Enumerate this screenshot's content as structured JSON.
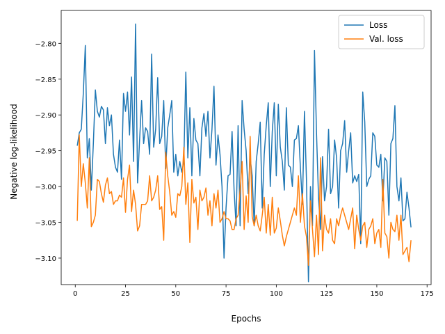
{
  "chart_data": {
    "type": "line",
    "xlabel": "Epochs",
    "ylabel": "Negative log-likelihood",
    "x": [
      1,
      2,
      3,
      4,
      5,
      6,
      7,
      8,
      9,
      10,
      11,
      12,
      13,
      14,
      15,
      16,
      17,
      18,
      19,
      20,
      21,
      22,
      23,
      24,
      25,
      26,
      27,
      28,
      29,
      30,
      31,
      32,
      33,
      34,
      35,
      36,
      37,
      38,
      39,
      40,
      41,
      42,
      43,
      44,
      45,
      46,
      47,
      48,
      49,
      50,
      51,
      52,
      53,
      54,
      55,
      56,
      57,
      58,
      59,
      60,
      61,
      62,
      63,
      64,
      65,
      66,
      67,
      68,
      69,
      70,
      71,
      72,
      73,
      74,
      75,
      76,
      77,
      78,
      79,
      80,
      81,
      82,
      83,
      84,
      85,
      86,
      87,
      88,
      89,
      90,
      91,
      92,
      93,
      94,
      95,
      96,
      97,
      98,
      99,
      100,
      101,
      102,
      103,
      104,
      105,
      106,
      107,
      108,
      109,
      110,
      111,
      112,
      113,
      114,
      115,
      116,
      117,
      118,
      119,
      120,
      121,
      122,
      123,
      124,
      125,
      126,
      127,
      128,
      129,
      130,
      131,
      132,
      133,
      134,
      135,
      136,
      137,
      138,
      139,
      140,
      141,
      142,
      143,
      144,
      145,
      146,
      147,
      148,
      149,
      150,
      151,
      152,
      153,
      154,
      155,
      156,
      157,
      158,
      159,
      160,
      161,
      162,
      163,
      164,
      165,
      166,
      167
    ],
    "series": [
      {
        "name": "Loss",
        "color": "#1f77b4",
        "values": [
          -2.943,
          -2.925,
          -2.92,
          -2.87,
          -2.803,
          -2.96,
          -2.933,
          -3.005,
          -2.94,
          -2.865,
          -2.895,
          -2.903,
          -2.888,
          -2.893,
          -2.94,
          -2.89,
          -2.915,
          -2.9,
          -2.955,
          -2.973,
          -2.98,
          -2.935,
          -2.99,
          -2.87,
          -2.895,
          -2.868,
          -2.928,
          -2.847,
          -2.965,
          -2.773,
          -2.995,
          -2.935,
          -2.88,
          -2.94,
          -2.918,
          -2.923,
          -2.955,
          -2.815,
          -2.945,
          -2.92,
          -2.848,
          -2.94,
          -2.93,
          -2.88,
          -2.975,
          -2.918,
          -2.9,
          -2.88,
          -2.98,
          -2.955,
          -2.985,
          -2.965,
          -2.98,
          -2.965,
          -2.84,
          -2.96,
          -2.89,
          -2.985,
          -2.905,
          -2.935,
          -2.94,
          -2.985,
          -2.918,
          -2.898,
          -2.93,
          -2.895,
          -2.96,
          -2.92,
          -2.86,
          -2.97,
          -2.928,
          -2.955,
          -3.0,
          -3.1,
          -3.03,
          -2.985,
          -2.983,
          -2.923,
          -3.005,
          -3.055,
          -2.915,
          -3.055,
          -2.88,
          -2.92,
          -2.95,
          -3.01,
          -2.96,
          -2.985,
          -3.055,
          -2.965,
          -2.94,
          -2.91,
          -3.03,
          -2.955,
          -2.915,
          -2.883,
          -3.0,
          -2.923,
          -2.883,
          -2.985,
          -2.885,
          -2.945,
          -2.965,
          -3.005,
          -2.89,
          -2.97,
          -2.973,
          -3.0,
          -2.935,
          -2.933,
          -2.915,
          -2.975,
          -3.025,
          -2.895,
          -2.99,
          -3.133,
          -3.0,
          -3.055,
          -2.81,
          -2.925,
          -3.015,
          -3.06,
          -2.958,
          -3.02,
          -3.0,
          -2.92,
          -3.01,
          -3.0,
          -2.935,
          -2.96,
          -3.03,
          -2.95,
          -2.94,
          -2.908,
          -2.98,
          -2.95,
          -2.925,
          -2.995,
          -2.985,
          -2.993,
          -2.983,
          -3.08,
          -2.868,
          -2.91,
          -3.0,
          -2.99,
          -2.985,
          -2.925,
          -2.93,
          -2.97,
          -2.973,
          -2.955,
          -3.02,
          -2.96,
          -2.965,
          -3.04,
          -2.94,
          -2.933,
          -2.887,
          -3.0,
          -3.02,
          -2.988,
          -3.048,
          -3.045,
          -3.008,
          -3.03,
          -3.057
        ]
      },
      {
        "name": "Val. loss",
        "color": "#ff7f0e",
        "values": [
          -3.048,
          -2.928,
          -3.0,
          -2.968,
          -2.995,
          -3.03,
          -2.96,
          -3.056,
          -3.05,
          -3.04,
          -2.99,
          -2.993,
          -3.01,
          -3.022,
          -2.998,
          -2.988,
          -3.01,
          -3.007,
          -3.025,
          -3.02,
          -3.02,
          -3.012,
          -3.015,
          -2.988,
          -3.036,
          -2.99,
          -2.97,
          -3.035,
          -3.005,
          -3.025,
          -3.062,
          -3.055,
          -3.025,
          -3.025,
          -3.025,
          -3.02,
          -2.985,
          -3.02,
          -3.015,
          -3.005,
          -2.985,
          -3.032,
          -3.028,
          -3.075,
          -2.952,
          -2.985,
          -3.008,
          -3.04,
          -3.035,
          -3.043,
          -3.01,
          -3.013,
          -3.0,
          -2.945,
          -3.025,
          -2.995,
          -3.078,
          -2.99,
          -3.023,
          -3.015,
          -3.06,
          -3.005,
          -3.02,
          -3.015,
          -3.002,
          -3.04,
          -3.02,
          -3.055,
          -3.01,
          -3.03,
          -3.005,
          -3.05,
          -3.045,
          -3.035,
          -3.045,
          -3.045,
          -3.048,
          -3.06,
          -3.06,
          -3.045,
          -3.04,
          -3.005,
          -2.965,
          -3.06,
          -3.013,
          -3.05,
          -2.93,
          -3.042,
          -3.055,
          -3.04,
          -3.055,
          -3.062,
          -3.04,
          -3.015,
          -3.065,
          -3.025,
          -3.068,
          -3.015,
          -3.065,
          -3.058,
          -3.03,
          -3.048,
          -3.068,
          -3.083,
          -3.07,
          -3.06,
          -3.05,
          -3.04,
          -3.03,
          -3.04,
          -2.985,
          -3.05,
          -3.01,
          -3.055,
          -3.07,
          -3.11,
          -3.02,
          -3.06,
          -3.098,
          -3.04,
          -3.095,
          -2.96,
          -3.09,
          -3.04,
          -3.06,
          -3.065,
          -3.045,
          -3.075,
          -3.08,
          -3.045,
          -3.055,
          -3.04,
          -3.03,
          -3.04,
          -3.05,
          -3.06,
          -3.045,
          -3.03,
          -3.087,
          -3.04,
          -3.06,
          -3.075,
          -3.055,
          -3.05,
          -3.085,
          -3.06,
          -3.055,
          -3.045,
          -3.08,
          -3.065,
          -3.06,
          -3.085,
          -2.99,
          -3.065,
          -3.07,
          -3.1,
          -3.05,
          -3.06,
          -3.063,
          -3.04,
          -3.075,
          -3.04,
          -3.095,
          -3.09,
          -3.085,
          -3.105,
          -3.075
        ]
      }
    ],
    "xlim": [
      -7,
      177
    ],
    "ylim": [
      -3.137,
      -2.754
    ],
    "xticks": [
      0,
      25,
      50,
      75,
      100,
      125,
      150,
      175
    ],
    "yticks": [
      {
        "value": -3.1,
        "label": "−3.10"
      },
      {
        "value": -3.05,
        "label": "−3.05"
      },
      {
        "value": -3.0,
        "label": "−3.00"
      },
      {
        "value": -2.95,
        "label": "−2.95"
      },
      {
        "value": -2.9,
        "label": "−2.90"
      },
      {
        "value": -2.85,
        "label": "−2.85"
      },
      {
        "value": -2.8,
        "label": "−2.80"
      }
    ],
    "legend": "upper right"
  }
}
